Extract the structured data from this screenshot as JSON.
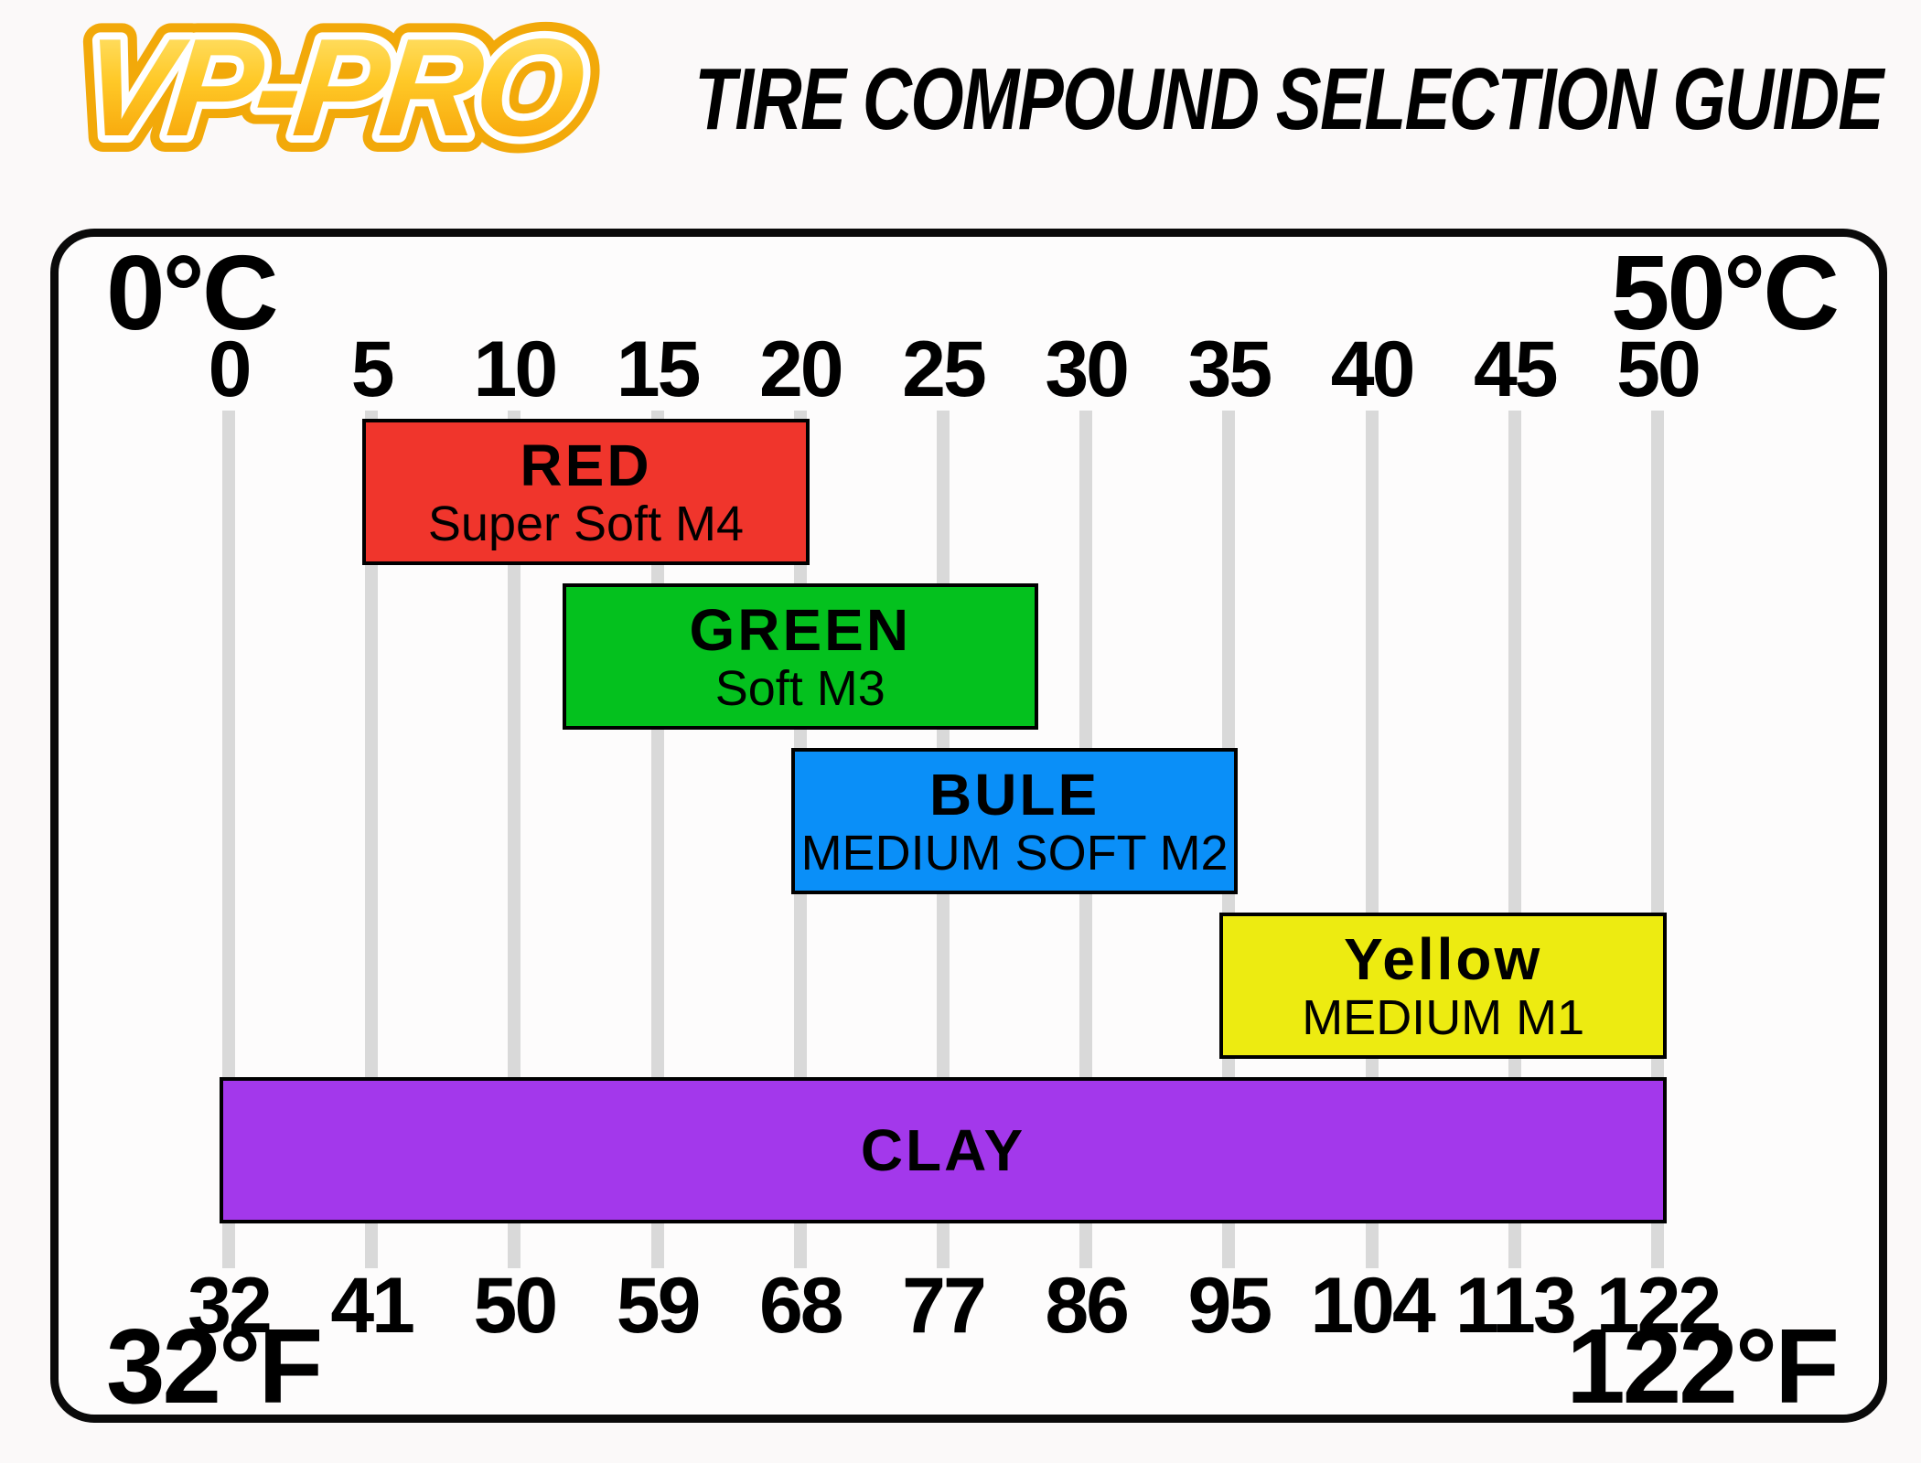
{
  "header": {
    "logo_text": "VP-PRO",
    "title": "TIRE COMPOUND SELECTION GUIDE"
  },
  "chart": {
    "celsius_left_label": "0°C",
    "celsius_right_label": "50°C",
    "fahrenheit_left_label": "32°F",
    "fahrenheit_right_label": "122°F"
  },
  "chart_data": {
    "type": "bar",
    "subtype": "horizontal-temperature-range-bands",
    "title": "TIRE COMPOUND SELECTION GUIDE",
    "grid": true,
    "x_axis_top": {
      "unit": "°C",
      "range": [
        0,
        50
      ],
      "ticks": [
        0,
        5,
        10,
        15,
        20,
        25,
        30,
        35,
        40,
        45,
        50
      ]
    },
    "x_axis_bottom": {
      "unit": "°F",
      "range": [
        32,
        122
      ],
      "ticks": [
        32,
        41,
        50,
        59,
        68,
        77,
        86,
        95,
        104,
        113,
        122
      ]
    },
    "series": [
      {
        "name": "RED",
        "compound": "Super Soft M4",
        "color": "#F0352C",
        "range_c": [
          5,
          20
        ],
        "range_f": [
          41,
          68
        ]
      },
      {
        "name": "GREEN",
        "compound": "Soft M3",
        "color": "#04C11E",
        "range_c": [
          12,
          28
        ],
        "range_f": [
          53.6,
          82.4
        ]
      },
      {
        "name": "BULE",
        "compound": "MEDIUM SOFT M2",
        "color": "#0A8FF8",
        "range_c": [
          20,
          35
        ],
        "range_f": [
          68,
          95
        ]
      },
      {
        "name": "Yellow",
        "compound": "MEDIUM M1",
        "color": "#EDEB11",
        "range_c": [
          35,
          50
        ],
        "range_f": [
          95,
          122
        ]
      },
      {
        "name": "CLAY",
        "compound": "",
        "color": "#A338EB",
        "range_c": [
          0,
          50
        ],
        "range_f": [
          32,
          122
        ]
      }
    ]
  }
}
